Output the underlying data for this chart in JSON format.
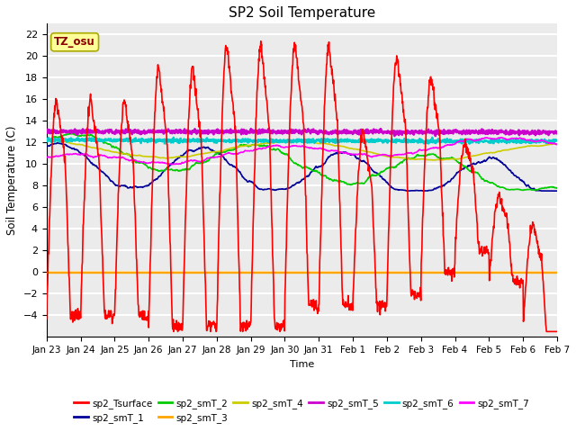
{
  "title": "SP2 Soil Temperature",
  "ylabel": "Soil Temperature (C)",
  "xlabel": "Time",
  "annotation_text": "TZ_osu",
  "annotation_color": "#8B0000",
  "annotation_bg": "#FFFF99",
  "ylim": [
    -6,
    23
  ],
  "yticks": [
    -4,
    -2,
    0,
    2,
    4,
    6,
    8,
    10,
    12,
    14,
    16,
    18,
    20,
    22
  ],
  "series_colors": {
    "sp2_Tsurface": "#FF0000",
    "sp2_smT_1": "#000099",
    "sp2_smT_2": "#00CC00",
    "sp2_smT_3": "#FFA500",
    "sp2_smT_4": "#CCCC00",
    "sp2_smT_5": "#CC00CC",
    "sp2_smT_6": "#00CCCC",
    "sp2_smT_7": "#FF00FF"
  },
  "background_color": "#EBEBEB",
  "grid_color": "#FFFFFF",
  "x_labels": [
    "Jan 23",
    "Jan 24",
    "Jan 25",
    "Jan 26",
    "Jan 27",
    "Jan 28",
    "Jan 29",
    "Jan 30",
    "Jan 31",
    "Feb 1",
    "Feb 2",
    "Feb 3",
    "Feb 4",
    "Feb 5",
    "Feb 6",
    "Feb 7"
  ]
}
